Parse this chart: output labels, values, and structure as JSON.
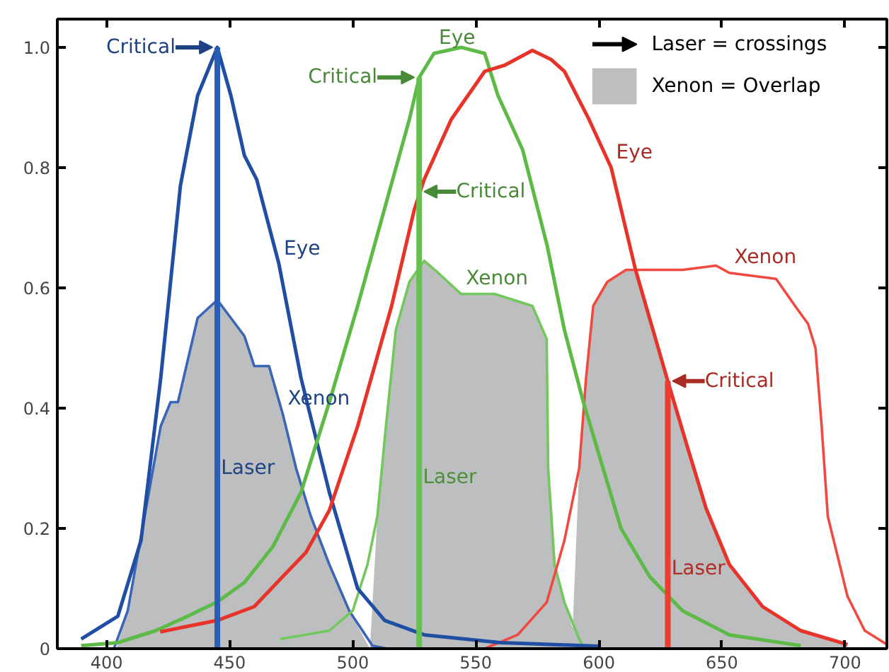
{
  "chart_data": {
    "type": "line",
    "xlim": [
      380,
      717
    ],
    "ylim": [
      0,
      1.047
    ],
    "xticks": [
      400,
      450,
      500,
      550,
      600,
      650,
      700
    ],
    "yticks": [
      0,
      0.2,
      0.4,
      0.6,
      0.8,
      {
        "value": 1,
        "label": "1.0"
      }
    ],
    "grid": false,
    "legend": "top right",
    "marker": "none",
    "line_style": "solid",
    "series": [
      {
        "type": "area",
        "name": "Xenon = Overlap",
        "color": "#bcbec0",
        "x": [
          404,
          408.6,
          422,
          426,
          429,
          433,
          437,
          445,
          450.5,
          456,
          460,
          466,
          471.6,
          477,
          483,
          490.5,
          498.6,
          507
        ],
        "values": [
          0,
          0.063,
          0.37,
          0.41,
          0.41,
          0.48,
          0.55,
          0.58,
          0.55,
          0.52,
          0.47,
          0.47,
          0.39,
          0.3,
          0.22,
          0.14,
          0.063,
          0
        ]
      },
      {
        "type": "area",
        "color": "#bcbec0",
        "x": [
          507,
          510,
          513.5,
          517.5,
          523,
          529,
          534.7,
          544,
          557.6,
          573,
          578.8,
          579.4,
          582,
          586,
          592
        ],
        "values": [
          0,
          0.22,
          0.37,
          0.53,
          0.61,
          0.645,
          0.625,
          0.59,
          0.59,
          0.57,
          0.515,
          0.3,
          0.14,
          0.077,
          0
        ]
      },
      {
        "type": "area",
        "color": "#bcbec0",
        "x": [
          589,
          592,
          594.8,
          597.7,
          603.4,
          611,
          614.9,
          628,
          636,
          643.5,
          653,
          666.5,
          682,
          701
        ],
        "values": [
          0,
          0.3,
          0.45,
          0.57,
          0.61,
          0.63,
          0.63,
          0.445,
          0.335,
          0.234,
          0.14,
          0.07,
          0.03,
          0.007
        ]
      },
      {
        "color": "#3b66b8",
        "x": [
          403,
          408.6,
          422,
          426,
          429,
          433,
          437,
          445,
          450.5,
          456,
          460,
          466,
          471.6,
          477,
          483,
          490.5,
          498.6,
          508,
          514
        ],
        "values": [
          0,
          0.063,
          0.37,
          0.41,
          0.41,
          0.48,
          0.55,
          0.58,
          0.55,
          0.52,
          0.47,
          0.47,
          0.39,
          0.3,
          0.22,
          0.14,
          0.063,
          0.005,
          0
        ]
      },
      {
        "color": "#72c85c",
        "x": [
          470.5,
          490.5,
          500,
          506,
          510,
          513.5,
          517.5,
          523,
          529,
          534.7,
          544,
          557.6,
          573,
          578.8,
          579.4,
          582,
          586,
          592,
          594
        ],
        "values": [
          0.016,
          0.03,
          0.063,
          0.14,
          0.22,
          0.37,
          0.53,
          0.61,
          0.645,
          0.625,
          0.59,
          0.59,
          0.57,
          0.515,
          0.3,
          0.14,
          0.077,
          0.016,
          0
        ]
      },
      {
        "color": "#f0493f",
        "x": [
          553.6,
          567,
          578.8,
          586,
          592,
          594.8,
          597.7,
          603.4,
          611,
          634,
          647.6,
          653,
          672,
          679.7,
          685,
          688,
          690.5,
          693,
          701,
          708,
          717
        ],
        "values": [
          0,
          0.023,
          0.077,
          0.18,
          0.3,
          0.45,
          0.57,
          0.61,
          0.63,
          0.63,
          0.637,
          0.625,
          0.615,
          0.57,
          0.54,
          0.5,
          0.37,
          0.22,
          0.087,
          0.03,
          0.007
        ]
      },
      {
        "color": "#1f4ea3",
        "x": [
          389.7,
          404.6,
          414,
          422,
          430,
          437,
          445,
          450.5,
          456,
          461,
          470,
          479,
          490.5,
          502,
          513,
          529,
          560,
          600
        ],
        "values": [
          0.016,
          0.054,
          0.18,
          0.45,
          0.77,
          0.92,
          1.0,
          0.92,
          0.82,
          0.78,
          0.64,
          0.45,
          0.26,
          0.1,
          0.047,
          0.023,
          0.01,
          0.004
        ]
      },
      {
        "color": "#5dba47",
        "x": [
          389.7,
          404.6,
          420,
          433,
          445,
          456,
          467.6,
          479,
          490.5,
          502,
          513.5,
          523,
          527,
          533,
          544,
          553.6,
          559,
          569,
          579,
          586,
          593.7,
          601.7,
          609,
          620.6,
          634,
          653,
          682
        ],
        "values": [
          0.005,
          0.01,
          0.03,
          0.054,
          0.078,
          0.11,
          0.17,
          0.26,
          0.41,
          0.57,
          0.74,
          0.88,
          0.95,
          0.99,
          1.0,
          0.99,
          0.92,
          0.83,
          0.67,
          0.53,
          0.41,
          0.3,
          0.2,
          0.12,
          0.063,
          0.023,
          0.005
        ]
      },
      {
        "color": "#e8332a",
        "x": [
          421.8,
          445,
          460,
          471.6,
          481,
          490.5,
          502,
          515.8,
          525,
          529,
          540,
          553.6,
          561.6,
          573,
          580.5,
          586,
          596,
          605,
          614.9,
          628,
          636,
          643.5,
          653,
          666.5,
          682,
          701
        ],
        "values": [
          0.028,
          0.047,
          0.07,
          0.12,
          0.16,
          0.23,
          0.37,
          0.57,
          0.73,
          0.78,
          0.88,
          0.96,
          0.97,
          0.995,
          0.98,
          0.96,
          0.88,
          0.8,
          0.63,
          0.445,
          0.335,
          0.234,
          0.14,
          0.07,
          0.03,
          0.007
        ]
      },
      {
        "name": "Laser",
        "color": "#2a5db5",
        "x": [
          445,
          445
        ],
        "values": [
          0,
          1.0
        ]
      },
      {
        "name": "Laser",
        "color": "#66c04f",
        "x": [
          527,
          527
        ],
        "values": [
          0,
          0.95
        ]
      },
      {
        "name": "Laser",
        "color": "#ec3d33",
        "x": [
          628,
          628
        ],
        "values": [
          0,
          0.445
        ]
      }
    ],
    "annotations": [
      "Laser = crossings",
      {
        "text": "Critical",
        "x": 445,
        "y": 1.0
      },
      {
        "text": "Critical",
        "x": 527,
        "y": 0.95
      },
      {
        "text": "Critical",
        "x": 527,
        "y": 0.76
      },
      {
        "text": "Critical",
        "x": 628,
        "y": 0.445
      },
      {
        "text": "Eye",
        "x": 470,
        "y": 0.64
      },
      {
        "text": "Eye",
        "x": 533,
        "y": 0.99
      },
      {
        "text": "Eye",
        "x": 605,
        "y": 0.8
      },
      {
        "text": "Xenon",
        "x": 471.6,
        "y": 0.39
      },
      {
        "text": "Xenon",
        "x": 544,
        "y": 0.59
      },
      {
        "text": "Xenon",
        "x": 653,
        "y": 0.625
      }
    ]
  }
}
